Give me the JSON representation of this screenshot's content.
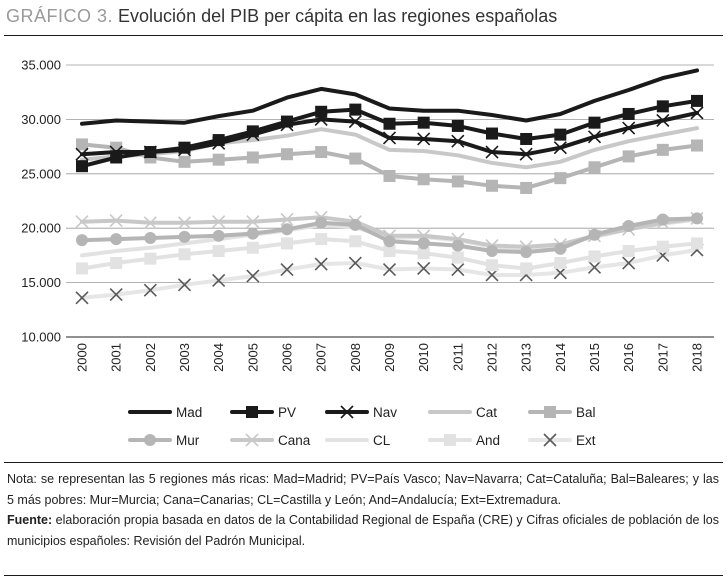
{
  "header": {
    "label": "GRÁFICO 3.",
    "title": "Evolución del PIB per cápita en las regiones españolas"
  },
  "chart_data": {
    "type": "line",
    "title": "Evolución del PIB per cápita en las regiones españolas",
    "xlabel": "",
    "ylabel": "",
    "ylim": [
      10000,
      35000
    ],
    "grid": true,
    "x": [
      "2000",
      "2001",
      "2002",
      "2003",
      "2004",
      "2005",
      "2006",
      "2007",
      "2008",
      "2009",
      "2010",
      "2011",
      "2012",
      "2013",
      "2014",
      "2015",
      "2016",
      "2017",
      "2018"
    ],
    "yticks": [
      {
        "value": 10000,
        "label": "10.000"
      },
      {
        "value": 15000,
        "label": "15.000"
      },
      {
        "value": 20000,
        "label": "20.000"
      },
      {
        "value": 25000,
        "label": "25.000"
      },
      {
        "value": 30000,
        "label": "30.000"
      },
      {
        "value": 35000,
        "label": "35.000"
      }
    ],
    "series": [
      {
        "key": "mad",
        "name": "Mad",
        "color": "#1a1a1a",
        "marker": "none",
        "values": [
          29600,
          29900,
          29800,
          29700,
          30300,
          30800,
          32000,
          32800,
          32300,
          31000,
          30800,
          30800,
          30400,
          29900,
          30500,
          31700,
          32700,
          33800,
          34500
        ]
      },
      {
        "key": "pv",
        "name": "PV",
        "color": "#1a1a1a",
        "marker": "square",
        "values": [
          25700,
          26500,
          27000,
          27400,
          28100,
          28900,
          29800,
          30700,
          30900,
          29600,
          29700,
          29400,
          28700,
          28200,
          28600,
          29700,
          30500,
          31200,
          31700
        ]
      },
      {
        "key": "nav",
        "name": "Nav",
        "color": "#1a1a1a",
        "marker": "x",
        "values": [
          26800,
          27000,
          27000,
          27200,
          27800,
          28600,
          29500,
          30000,
          29800,
          28300,
          28200,
          28000,
          27000,
          26800,
          27400,
          28400,
          29200,
          29900,
          30600
        ]
      },
      {
        "key": "cat",
        "name": "Cat",
        "color": "#c8c8c8",
        "marker": "none",
        "values": [
          26300,
          26600,
          26800,
          27100,
          27800,
          28100,
          28500,
          29100,
          28600,
          27200,
          27100,
          26700,
          26000,
          25600,
          26100,
          27200,
          28000,
          28600,
          29200
        ]
      },
      {
        "key": "bal",
        "name": "Bal",
        "color": "#b5b5b5",
        "marker": "square",
        "values": [
          27700,
          27400,
          26500,
          26100,
          26300,
          26500,
          26800,
          27000,
          26400,
          24800,
          24500,
          24300,
          23900,
          23700,
          24600,
          25600,
          26600,
          27200,
          27600
        ]
      },
      {
        "key": "mur",
        "name": "Mur",
        "color": "#b5b5b5",
        "marker": "circle",
        "values": [
          18900,
          19000,
          19100,
          19200,
          19300,
          19500,
          19900,
          20500,
          20300,
          18800,
          18600,
          18400,
          17900,
          17800,
          18100,
          19400,
          20200,
          20800,
          20900
        ]
      },
      {
        "key": "cana",
        "name": "Cana",
        "color": "#c8c8c8",
        "marker": "x",
        "values": [
          20600,
          20700,
          20500,
          20500,
          20600,
          20600,
          20800,
          21000,
          20600,
          19300,
          19300,
          19000,
          18400,
          18300,
          18500,
          19300,
          19900,
          20500,
          20900
        ]
      },
      {
        "key": "cl",
        "name": "CL",
        "color": "#e2e2e2",
        "marker": "none",
        "values": [
          17500,
          17900,
          18200,
          18600,
          19000,
          19400,
          19800,
          20300,
          20100,
          19100,
          19200,
          18900,
          18300,
          18000,
          18500,
          19200,
          19900,
          20400,
          20800
        ]
      },
      {
        "key": "and",
        "name": "And",
        "color": "#e2e2e2",
        "marker": "square",
        "values": [
          16300,
          16800,
          17200,
          17600,
          17900,
          18200,
          18600,
          19000,
          18800,
          17900,
          17700,
          17300,
          16600,
          16300,
          16800,
          17400,
          17900,
          18300,
          18600
        ]
      },
      {
        "key": "ext",
        "name": "Ext",
        "color": "#5a5a5a",
        "linecolor": "#e6e6e6",
        "marker": "x",
        "values": [
          13600,
          13900,
          14300,
          14800,
          15200,
          15600,
          16200,
          16700,
          16800,
          16200,
          16300,
          16200,
          15700,
          15700,
          15900,
          16400,
          16800,
          17500,
          18000
        ]
      }
    ]
  },
  "notes": {
    "nota": "Nota: se representan las 5 regiones más ricas: Mad=Madrid; PV=País Vasco; Nav=Navarra; Cat=Cataluña; Bal=Baleares; y las 5 más pobres: Mur=Murcia; Cana=Canarias; CL=Castilla y León; And=Andalucía; Ext=Extremadura.",
    "fuente_label": "Fuente:",
    "fuente_text": " elaboración propia basada en datos de la Contabilidad Regional de España (CRE) y Cifras oficiales de población de los municipios españoles: Revisión del Padrón Municipal."
  }
}
